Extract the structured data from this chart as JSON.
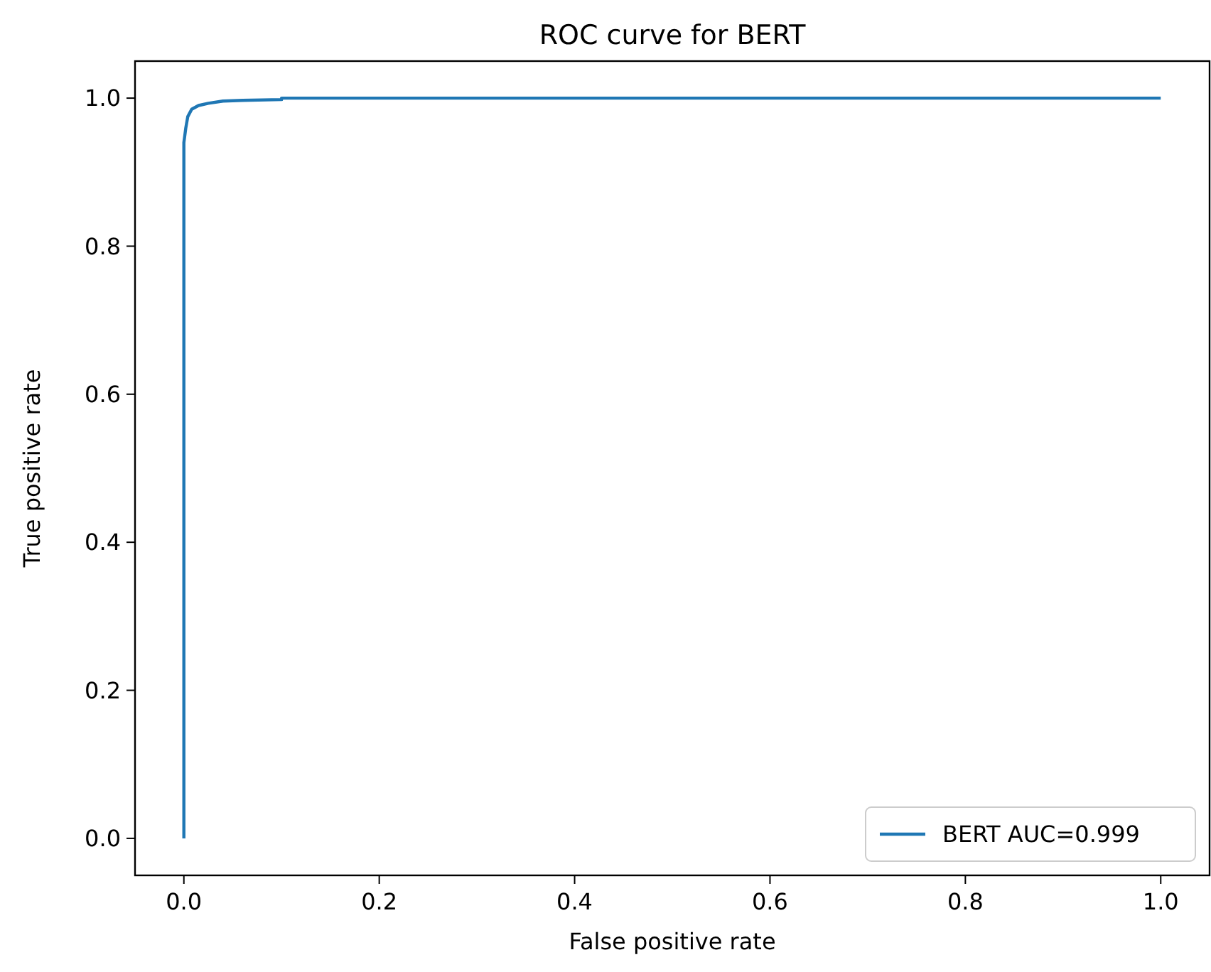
{
  "chart_data": {
    "type": "line",
    "title": "ROC curve for BERT",
    "xlabel": "False positive rate",
    "ylabel": "True positive rate",
    "xlim": [
      -0.05,
      1.05
    ],
    "ylim": [
      -0.05,
      1.05
    ],
    "xticks": [
      {
        "value": 0,
        "label": "0.0"
      },
      {
        "value": 0.2,
        "label": "0.2"
      },
      {
        "value": 0.4,
        "label": "0.4"
      },
      {
        "value": 0.6,
        "label": "0.6"
      },
      {
        "value": 0.8,
        "label": "0.8"
      },
      {
        "value": 1,
        "label": "1.0"
      }
    ],
    "yticks": [
      {
        "value": 0,
        "label": "0.0"
      },
      {
        "value": 0.2,
        "label": "0.2"
      },
      {
        "value": 0.4,
        "label": "0.4"
      },
      {
        "value": 0.6,
        "label": "0.6"
      },
      {
        "value": 0.8,
        "label": "0.8"
      },
      {
        "value": 1,
        "label": "1.0"
      }
    ],
    "grid": false,
    "legend": "bottom right",
    "series": [
      {
        "name": "BERT AUC=0.999",
        "color": "#1f77b4",
        "x": [
          0,
          0,
          0.001,
          0.002,
          0.004,
          0.008,
          0.015,
          0.025,
          0.04,
          0.06,
          0.1,
          0.1,
          1
        ],
        "values": [
          0,
          0.94,
          0.95,
          0.96,
          0.975,
          0.985,
          0.99,
          0.993,
          0.996,
          0.997,
          0.998,
          1,
          1
        ]
      }
    ]
  }
}
